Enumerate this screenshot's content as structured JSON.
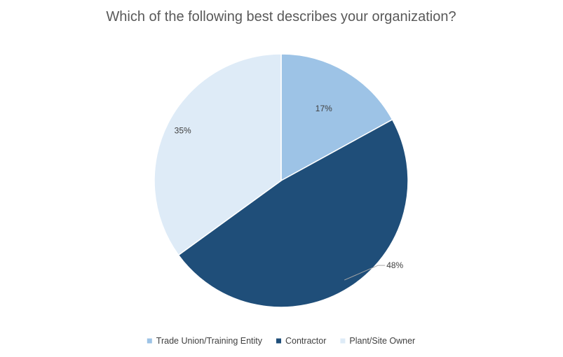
{
  "chart_data": {
    "type": "pie",
    "title": "Which of the following best describes your organization?",
    "slices": [
      {
        "label": "Trade Union/Training Entity",
        "value": 17,
        "display": "17%",
        "color": "#9DC3E6"
      },
      {
        "label": "Contractor",
        "value": 48,
        "display": "48%",
        "color": "#1F4E79"
      },
      {
        "label": "Plant/Site Owner",
        "value": 35,
        "display": "35%",
        "color": "#DEEBF7"
      }
    ],
    "start": "12 o'clock",
    "direction": "clockwise",
    "legend": "bottom",
    "slice_border_color": "#FFFFFF",
    "leader_line_color": "#A6A6A6"
  }
}
